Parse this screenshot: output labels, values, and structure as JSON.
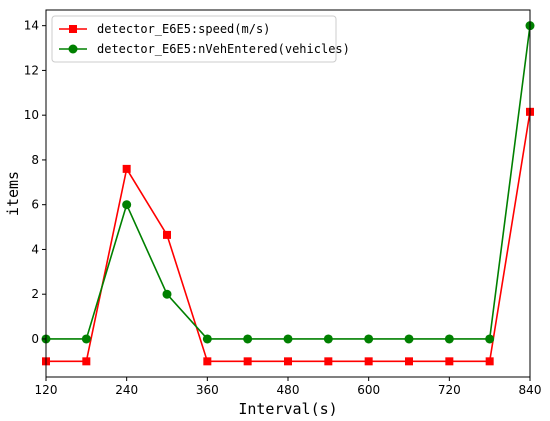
{
  "chart_data": {
    "type": "line",
    "title": "",
    "xlabel": "Interval(s)",
    "ylabel": "items",
    "xlim": [
      120,
      840
    ],
    "ylim": [
      -1.7,
      14.7
    ],
    "xticks": [
      120,
      240,
      360,
      480,
      600,
      720,
      840
    ],
    "yticks": [
      0,
      2,
      4,
      6,
      8,
      10,
      12,
      14
    ],
    "grid": false,
    "legend_position": "upper-left",
    "x": [
      120,
      180,
      240,
      300,
      360,
      420,
      480,
      540,
      600,
      660,
      720,
      780,
      840
    ],
    "series": [
      {
        "name": "detector_E6E5:speed(m/s)",
        "color": "#ff0000",
        "marker": "square",
        "values": [
          -1,
          -1,
          7.6,
          4.65,
          -1,
          -1,
          -1,
          -1,
          -1,
          -1,
          -1,
          -1,
          10.15
        ]
      },
      {
        "name": "detector_E6E5:nVehEntered(vehicles)",
        "color": "#008000",
        "marker": "circle",
        "values": [
          0,
          0,
          6,
          2,
          0,
          0,
          0,
          0,
          0,
          0,
          0,
          0,
          14
        ]
      }
    ]
  }
}
